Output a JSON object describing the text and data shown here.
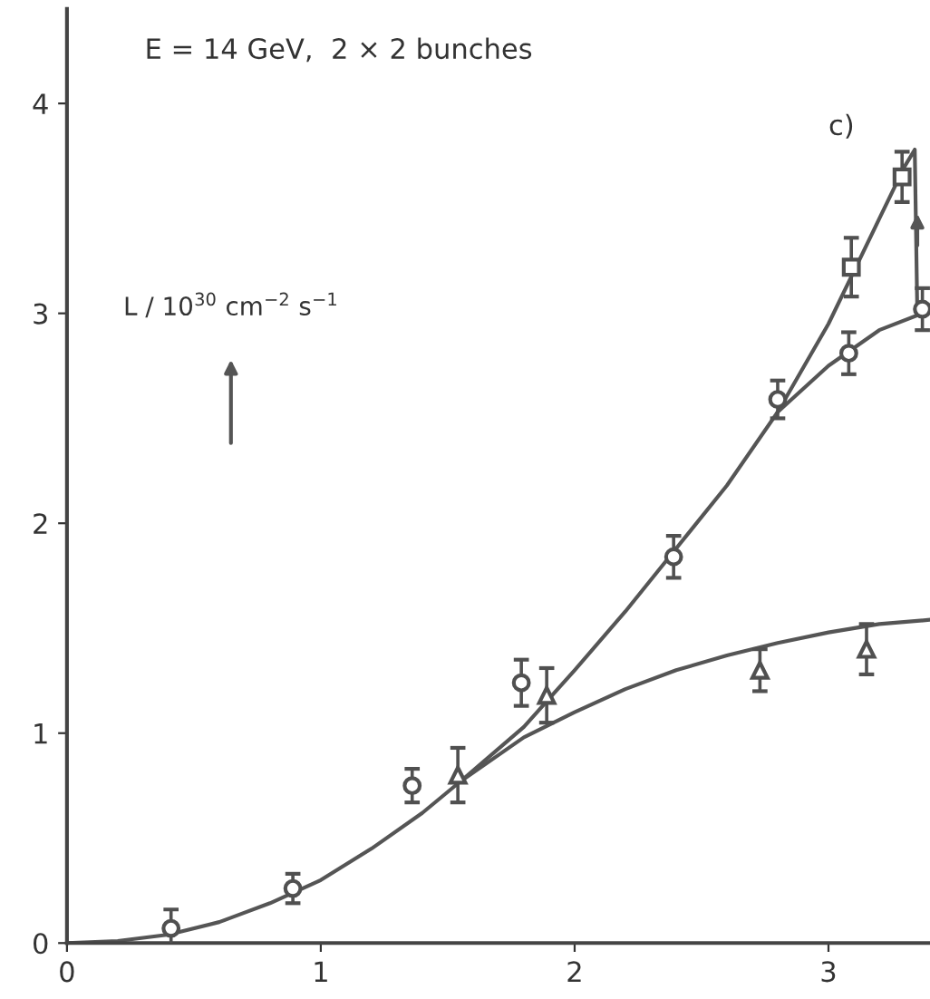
{
  "chart_data": {
    "type": "scatter",
    "title": "E = 14 GeV,  2 × 2 bunches",
    "ylabel": "L / 10$^{30}$ cm$^{−2}$ s$^{−1}$",
    "annotations": [
      "c)"
    ],
    "xlim": [
      0,
      3.4
    ],
    "ylim": [
      0,
      4.45
    ],
    "xticks": [
      0,
      1,
      2,
      3
    ],
    "yticks": [
      0,
      1,
      2,
      3,
      4
    ],
    "grid": false,
    "legend": false,
    "series": [
      {
        "type": "scatter",
        "marker": "circle",
        "color": "#505050",
        "x": [
          0.41,
          0.89,
          1.36,
          1.79,
          2.39,
          2.8,
          3.08,
          3.37
        ],
        "values": [
          0.07,
          0.26,
          0.75,
          1.24,
          1.84,
          2.59,
          2.81,
          3.02
        ],
        "errors": [
          0.09,
          0.07,
          0.08,
          0.11,
          0.1,
          0.09,
          0.1,
          0.1
        ]
      },
      {
        "type": "scatter",
        "marker": "square",
        "color": "#505050",
        "x": [
          3.09,
          3.29
        ],
        "values": [
          3.22,
          3.65
        ],
        "errors": [
          0.14,
          0.12
        ]
      },
      {
        "type": "scatter",
        "marker": "triangle",
        "color": "#505050",
        "x": [
          1.54,
          1.89,
          2.73,
          3.15
        ],
        "values": [
          0.8,
          1.18,
          1.3,
          1.4
        ],
        "errors": [
          0.13,
          0.13,
          0.1,
          0.12
        ]
      },
      {
        "type": "line",
        "marker": "none",
        "line_style": "solid",
        "color": "#555555",
        "x": [
          0,
          0.2,
          0.4,
          0.6,
          0.8,
          1.0,
          1.2,
          1.4,
          1.55,
          1.8,
          2.0,
          2.2,
          2.4,
          2.6,
          2.8,
          3.0,
          3.2,
          3.4
        ],
        "values": [
          0,
          0.01,
          0.04,
          0.1,
          0.19,
          0.3,
          0.45,
          0.62,
          0.77,
          0.98,
          1.1,
          1.21,
          1.3,
          1.37,
          1.43,
          1.48,
          1.52,
          1.54
        ]
      },
      {
        "type": "line",
        "marker": "none",
        "line_style": "solid",
        "color": "#555555",
        "x": [
          1.55,
          1.8,
          2.0,
          2.2,
          2.4,
          2.6,
          2.8,
          3.0,
          3.2,
          3.37
        ],
        "values": [
          0.77,
          1.03,
          1.3,
          1.58,
          1.88,
          2.18,
          2.53,
          2.75,
          2.92,
          3.0
        ]
      },
      {
        "type": "line",
        "marker": "none",
        "line_style": "solid",
        "color": "#555555",
        "x": [
          2.8,
          3.0,
          3.1,
          3.2,
          3.3,
          3.34,
          3.35
        ],
        "values": [
          2.53,
          2.95,
          3.2,
          3.45,
          3.7,
          3.78,
          3.0
        ]
      }
    ]
  }
}
